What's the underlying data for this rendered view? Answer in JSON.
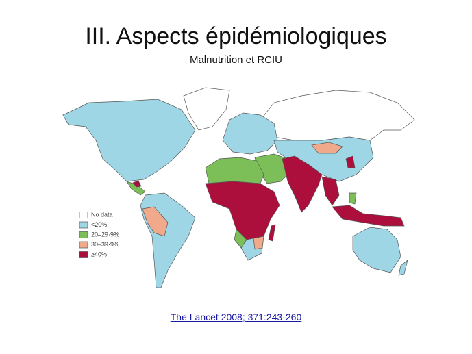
{
  "header": {
    "title": "III. Aspects épidémiologiques",
    "subtitle": "Malnutrition et RCIU"
  },
  "legend": {
    "items": [
      {
        "label": "No data",
        "color": "#ffffff"
      },
      {
        "label": "<20%",
        "color": "#9fd6e6"
      },
      {
        "label": "20–29·9%",
        "color": "#7cbf58"
      },
      {
        "label": "30–39·9%",
        "color": "#f1a98b"
      },
      {
        "label": "≥40%",
        "color": "#ad0f3c"
      }
    ]
  },
  "source": {
    "text": "The Lancet 2008; 371:243-260"
  }
}
